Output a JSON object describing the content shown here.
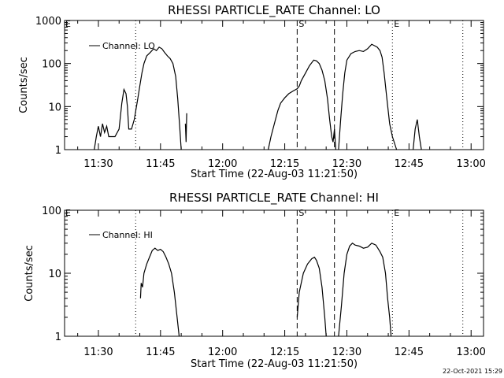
{
  "footer": {
    "timestamp": "22-Oct-2021 15:29"
  },
  "chart_data": [
    {
      "type": "line",
      "title": "RHESSI PARTICLE_RATE Channel: LO",
      "xlabel": "Start Time (22-Aug-03 11:21:50)",
      "ylabel": "Counts/sec",
      "y_scale": "log",
      "ylim": [
        1,
        1000
      ],
      "y_ticks": [
        "1",
        "10",
        "100",
        "1000"
      ],
      "xlim": [
        "11:21:50",
        "13:03:00"
      ],
      "x_ticks": [
        "11:30",
        "11:45",
        "12:00",
        "12:15",
        "12:30",
        "12:45",
        "13:00"
      ],
      "legend": {
        "label": "Channel: LO",
        "placement": "top-left"
      },
      "markers": [
        {
          "label": "",
          "time": "11:39:00",
          "style": "dotted"
        },
        {
          "label": "S",
          "time": "12:18:00",
          "style": "dashed"
        },
        {
          "label": "",
          "time": "12:27:00",
          "style": "dashed"
        },
        {
          "label": "E",
          "time": "12:41:00",
          "style": "dotted"
        },
        {
          "label": "",
          "time": "12:58:00",
          "style": "dotted"
        }
      ],
      "segments": [
        {
          "points": [
            [
              "11:29:00",
              1
            ],
            [
              "11:29:30",
              2
            ],
            [
              "11:30:00",
              3.5
            ],
            [
              "11:30:30",
              2
            ],
            [
              "11:31:00",
              4
            ],
            [
              "11:31:30",
              2.5
            ],
            [
              "11:32:00",
              3.5
            ],
            [
              "11:32:30",
              2
            ],
            [
              "11:33:30",
              2
            ],
            [
              "11:34:00",
              2
            ],
            [
              "11:35:00",
              3
            ],
            [
              "11:35:40",
              12
            ],
            [
              "11:36:10",
              25
            ],
            [
              "11:36:40",
              20
            ],
            [
              "11:37:00",
              10
            ],
            [
              "11:37:20",
              3
            ],
            [
              "11:38:00",
              3
            ],
            [
              "11:38:40",
              5
            ],
            [
              "11:39:30",
              15
            ],
            [
              "11:40:00",
              30
            ],
            [
              "11:40:30",
              60
            ],
            [
              "11:41:00",
              100
            ],
            [
              "11:41:40",
              150
            ],
            [
              "11:42:30",
              180
            ],
            [
              "11:43:20",
              220
            ],
            [
              "11:44:00",
              200
            ],
            [
              "11:44:40",
              240
            ],
            [
              "11:45:20",
              220
            ],
            [
              "11:46:00",
              180
            ],
            [
              "11:46:40",
              150
            ],
            [
              "11:47:20",
              130
            ],
            [
              "11:48:00",
              100
            ],
            [
              "11:48:40",
              50
            ],
            [
              "11:49:10",
              15
            ],
            [
              "11:49:40",
              3
            ],
            [
              "11:50:00",
              1
            ]
          ]
        },
        {
          "points": [
            [
              "11:51:00",
              4
            ],
            [
              "11:51:10",
              1.5
            ],
            [
              "11:51:20",
              7
            ]
          ]
        },
        {
          "points": [
            [
              "12:11:00",
              1
            ],
            [
              "12:11:40",
              2
            ],
            [
              "12:12:30",
              4
            ],
            [
              "12:13:20",
              8
            ],
            [
              "12:14:00",
              12
            ],
            [
              "12:15:00",
              16
            ],
            [
              "12:16:00",
              20
            ],
            [
              "12:17:00",
              23
            ],
            [
              "12:18:00",
              26
            ],
            [
              "12:18:30",
              30
            ],
            [
              "12:19:00",
              40
            ],
            [
              "12:20:00",
              60
            ],
            [
              "12:21:00",
              90
            ],
            [
              "12:22:00",
              120
            ],
            [
              "12:22:40",
              115
            ],
            [
              "12:23:20",
              100
            ],
            [
              "12:24:00",
              70
            ],
            [
              "12:24:40",
              40
            ],
            [
              "12:25:20",
              15
            ],
            [
              "12:25:50",
              5
            ],
            [
              "12:26:20",
              2
            ],
            [
              "12:26:40",
              1.5
            ],
            [
              "12:27:00",
              3
            ],
            [
              "12:27:20",
              1
            ]
          ]
        },
        {
          "points": [
            [
              "12:28:00",
              1
            ],
            [
              "12:28:30",
              5
            ],
            [
              "12:29:00",
              20
            ],
            [
              "12:29:30",
              60
            ],
            [
              "12:30:00",
              120
            ],
            [
              "12:31:00",
              170
            ],
            [
              "12:32:00",
              190
            ],
            [
              "12:33:00",
              200
            ],
            [
              "12:34:00",
              190
            ],
            [
              "12:35:00",
              220
            ],
            [
              "12:36:00",
              280
            ],
            [
              "12:36:40",
              260
            ],
            [
              "12:37:20",
              240
            ],
            [
              "12:38:00",
              200
            ],
            [
              "12:38:30",
              140
            ],
            [
              "12:39:00",
              60
            ],
            [
              "12:39:40",
              15
            ],
            [
              "12:40:20",
              4
            ],
            [
              "12:41:00",
              2
            ],
            [
              "12:42:00",
              1
            ]
          ]
        },
        {
          "points": [
            [
              "12:46:00",
              1
            ],
            [
              "12:46:30",
              3
            ],
            [
              "12:47:00",
              5
            ],
            [
              "12:47:30",
              2
            ],
            [
              "12:48:00",
              1
            ]
          ]
        }
      ]
    },
    {
      "type": "line",
      "title": "RHESSI PARTICLE_RATE Channel: HI",
      "xlabel": "Start Time (22-Aug-03 11:21:50)",
      "ylabel": "Counts/sec",
      "y_scale": "log",
      "ylim": [
        1,
        100
      ],
      "y_ticks": [
        "1",
        "10",
        "100"
      ],
      "xlim": [
        "11:21:50",
        "13:03:00"
      ],
      "x_ticks": [
        "11:30",
        "11:45",
        "12:00",
        "12:15",
        "12:30",
        "12:45",
        "13:00"
      ],
      "legend": {
        "label": "Channel: HI",
        "placement": "top-left"
      },
      "markers": [
        {
          "label": "",
          "time": "11:39:00",
          "style": "dotted"
        },
        {
          "label": "S",
          "time": "12:18:00",
          "style": "dashed"
        },
        {
          "label": "",
          "time": "12:27:00",
          "style": "dashed"
        },
        {
          "label": "E",
          "time": "12:41:00",
          "style": "dotted"
        },
        {
          "label": "",
          "time": "12:58:00",
          "style": "dotted"
        }
      ],
      "segments": [
        {
          "points": [
            [
              "11:40:10",
              4
            ],
            [
              "11:40:20",
              7
            ],
            [
              "11:40:40",
              6
            ],
            [
              "11:41:00",
              10
            ],
            [
              "11:41:40",
              14
            ],
            [
              "11:42:20",
              18
            ],
            [
              "11:43:00",
              23
            ],
            [
              "11:43:40",
              25
            ],
            [
              "11:44:20",
              23
            ],
            [
              "11:45:00",
              24
            ],
            [
              "11:45:40",
              22
            ],
            [
              "11:46:20",
              18
            ],
            [
              "11:47:00",
              14
            ],
            [
              "11:47:40",
              10
            ],
            [
              "11:48:20",
              5
            ],
            [
              "11:49:00",
              2
            ],
            [
              "11:49:30",
              1
            ]
          ]
        },
        {
          "points": [
            [
              "12:18:00",
              2
            ],
            [
              "12:18:30",
              5
            ],
            [
              "12:19:30",
              10
            ],
            [
              "12:20:30",
              14
            ],
            [
              "12:21:30",
              17
            ],
            [
              "12:22:10",
              18
            ],
            [
              "12:22:40",
              16
            ],
            [
              "12:23:20",
              12
            ],
            [
              "12:24:00",
              6
            ],
            [
              "12:24:40",
              2
            ],
            [
              "12:25:00",
              1
            ]
          ]
        },
        {
          "points": [
            [
              "12:28:00",
              1
            ],
            [
              "12:28:40",
              3
            ],
            [
              "12:29:20",
              10
            ],
            [
              "12:30:00",
              20
            ],
            [
              "12:30:40",
              27
            ],
            [
              "12:31:20",
              30
            ],
            [
              "12:32:00",
              28
            ],
            [
              "12:33:00",
              27
            ],
            [
              "12:34:00",
              25
            ],
            [
              "12:35:00",
              26
            ],
            [
              "12:36:00",
              30
            ],
            [
              "12:37:00",
              28
            ],
            [
              "12:38:00",
              22
            ],
            [
              "12:38:40",
              18
            ],
            [
              "12:39:20",
              10
            ],
            [
              "12:39:50",
              4
            ],
            [
              "12:40:20",
              2
            ],
            [
              "12:40:40",
              1
            ]
          ]
        }
      ]
    }
  ]
}
